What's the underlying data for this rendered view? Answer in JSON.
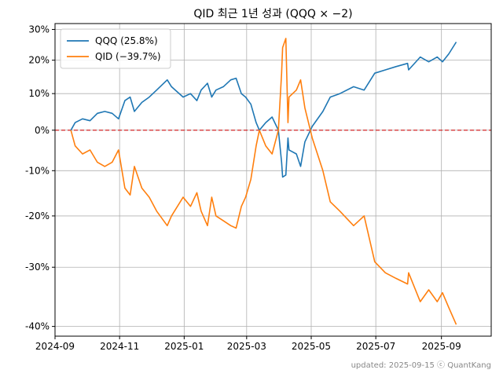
{
  "chart_data": {
    "type": "line",
    "title": "QID 최근 1년 성과 (QQQ × −2)",
    "footer": "updated: 2025-09-15 ⓒ QuantKang",
    "xlim": [
      "2024-09-01",
      "2025-10-18"
    ],
    "ylim": [
      -0.415,
      0.32
    ],
    "y_scale": "log (1+r)",
    "grid": true,
    "legend_position": "top-left",
    "reference_line": {
      "y": 0,
      "color": "#d62728",
      "style": "dashed"
    },
    "x_ticks": [
      {
        "date": "2024-09-01",
        "label": "2024-09"
      },
      {
        "date": "2024-11-01",
        "label": "2024-11"
      },
      {
        "date": "2025-01-01",
        "label": "2025-01"
      },
      {
        "date": "2025-03-01",
        "label": "2025-03"
      },
      {
        "date": "2025-05-01",
        "label": "2025-05"
      },
      {
        "date": "2025-07-01",
        "label": "2025-07"
      },
      {
        "date": "2025-09-01",
        "label": "2025-09"
      }
    ],
    "y_ticks": [
      {
        "value": -0.4,
        "label": "-40%"
      },
      {
        "value": -0.3,
        "label": "-30%"
      },
      {
        "value": -0.2,
        "label": "-20%"
      },
      {
        "value": -0.1,
        "label": "-10%"
      },
      {
        "value": 0.0,
        "label": "0%"
      },
      {
        "value": 0.1,
        "label": "10%"
      },
      {
        "value": 0.2,
        "label": "20%"
      },
      {
        "value": 0.3,
        "label": "30%"
      }
    ],
    "series": [
      {
        "name": "QQQ (25.8%)",
        "color": "#1f77b4",
        "points": [
          [
            "2024-09-16",
            0.0
          ],
          [
            "2024-09-20",
            0.02
          ],
          [
            "2024-09-27",
            0.03
          ],
          [
            "2024-10-04",
            0.025
          ],
          [
            "2024-10-11",
            0.045
          ],
          [
            "2024-10-18",
            0.05
          ],
          [
            "2024-10-25",
            0.045
          ],
          [
            "2024-10-31",
            0.03
          ],
          [
            "2024-11-06",
            0.08
          ],
          [
            "2024-11-11",
            0.09
          ],
          [
            "2024-11-15",
            0.05
          ],
          [
            "2024-11-22",
            0.075
          ],
          [
            "2024-11-29",
            0.09
          ],
          [
            "2024-12-06",
            0.11
          ],
          [
            "2024-12-16",
            0.14
          ],
          [
            "2024-12-20",
            0.12
          ],
          [
            "2024-12-31",
            0.09
          ],
          [
            "2025-01-07",
            0.1
          ],
          [
            "2025-01-13",
            0.08
          ],
          [
            "2025-01-17",
            0.11
          ],
          [
            "2025-01-23",
            0.13
          ],
          [
            "2025-01-27",
            0.09
          ],
          [
            "2025-01-31",
            0.11
          ],
          [
            "2025-02-07",
            0.12
          ],
          [
            "2025-02-14",
            0.14
          ],
          [
            "2025-02-19",
            0.145
          ],
          [
            "2025-02-24",
            0.1
          ],
          [
            "2025-02-28",
            0.09
          ],
          [
            "2025-03-05",
            0.07
          ],
          [
            "2025-03-10",
            0.02
          ],
          [
            "2025-03-13",
            0.0
          ],
          [
            "2025-03-19",
            0.02
          ],
          [
            "2025-03-25",
            0.035
          ],
          [
            "2025-03-31",
            0.0
          ],
          [
            "2025-04-03",
            -0.08
          ],
          [
            "2025-04-04",
            -0.115
          ],
          [
            "2025-04-07",
            -0.11
          ],
          [
            "2025-04-09",
            -0.02
          ],
          [
            "2025-04-10",
            -0.05
          ],
          [
            "2025-04-17",
            -0.06
          ],
          [
            "2025-04-21",
            -0.09
          ],
          [
            "2025-04-25",
            -0.03
          ],
          [
            "2025-05-02",
            0.01
          ],
          [
            "2025-05-12",
            0.05
          ],
          [
            "2025-05-19",
            0.09
          ],
          [
            "2025-05-28",
            0.1
          ],
          [
            "2025-06-10",
            0.12
          ],
          [
            "2025-06-20",
            0.11
          ],
          [
            "2025-06-30",
            0.16
          ],
          [
            "2025-07-10",
            0.17
          ],
          [
            "2025-07-20",
            0.18
          ],
          [
            "2025-07-31",
            0.19
          ],
          [
            "2025-08-01",
            0.17
          ],
          [
            "2025-08-12",
            0.21
          ],
          [
            "2025-08-20",
            0.195
          ],
          [
            "2025-08-28",
            0.21
          ],
          [
            "2025-09-02",
            0.195
          ],
          [
            "2025-09-08",
            0.22
          ],
          [
            "2025-09-15",
            0.258
          ]
        ]
      },
      {
        "name": "QID (−39.7%)",
        "color": "#ff7f0e",
        "points": [
          [
            "2024-09-16",
            0.0
          ],
          [
            "2024-09-20",
            -0.04
          ],
          [
            "2024-09-27",
            -0.06
          ],
          [
            "2024-10-04",
            -0.05
          ],
          [
            "2024-10-11",
            -0.08
          ],
          [
            "2024-10-18",
            -0.09
          ],
          [
            "2024-10-25",
            -0.08
          ],
          [
            "2024-10-31",
            -0.05
          ],
          [
            "2024-11-06",
            -0.14
          ],
          [
            "2024-11-11",
            -0.155
          ],
          [
            "2024-11-15",
            -0.09
          ],
          [
            "2024-11-22",
            -0.14
          ],
          [
            "2024-11-29",
            -0.16
          ],
          [
            "2024-12-06",
            -0.19
          ],
          [
            "2024-12-16",
            -0.22
          ],
          [
            "2024-12-20",
            -0.2
          ],
          [
            "2024-12-31",
            -0.16
          ],
          [
            "2025-01-07",
            -0.18
          ],
          [
            "2025-01-13",
            -0.15
          ],
          [
            "2025-01-17",
            -0.19
          ],
          [
            "2025-01-23",
            -0.22
          ],
          [
            "2025-01-27",
            -0.16
          ],
          [
            "2025-01-31",
            -0.2
          ],
          [
            "2025-02-07",
            -0.21
          ],
          [
            "2025-02-14",
            -0.22
          ],
          [
            "2025-02-19",
            -0.225
          ],
          [
            "2025-02-24",
            -0.18
          ],
          [
            "2025-02-28",
            -0.16
          ],
          [
            "2025-03-05",
            -0.12
          ],
          [
            "2025-03-10",
            -0.04
          ],
          [
            "2025-03-13",
            0.0
          ],
          [
            "2025-03-19",
            -0.04
          ],
          [
            "2025-03-25",
            -0.06
          ],
          [
            "2025-03-31",
            0.0
          ],
          [
            "2025-04-03",
            0.16
          ],
          [
            "2025-04-04",
            0.24
          ],
          [
            "2025-04-07",
            0.27
          ],
          [
            "2025-04-09",
            0.02
          ],
          [
            "2025-04-10",
            0.09
          ],
          [
            "2025-04-17",
            0.11
          ],
          [
            "2025-04-21",
            0.14
          ],
          [
            "2025-04-25",
            0.06
          ],
          [
            "2025-05-02",
            -0.02
          ],
          [
            "2025-05-12",
            -0.1
          ],
          [
            "2025-05-19",
            -0.17
          ],
          [
            "2025-05-28",
            -0.19
          ],
          [
            "2025-06-10",
            -0.22
          ],
          [
            "2025-06-20",
            -0.2
          ],
          [
            "2025-06-30",
            -0.29
          ],
          [
            "2025-07-10",
            -0.31
          ],
          [
            "2025-07-20",
            -0.32
          ],
          [
            "2025-07-31",
            -0.33
          ],
          [
            "2025-08-01",
            -0.31
          ],
          [
            "2025-08-12",
            -0.36
          ],
          [
            "2025-08-20",
            -0.34
          ],
          [
            "2025-08-28",
            -0.36
          ],
          [
            "2025-09-02",
            -0.345
          ],
          [
            "2025-09-08",
            -0.37
          ],
          [
            "2025-09-15",
            -0.397
          ]
        ]
      }
    ]
  }
}
